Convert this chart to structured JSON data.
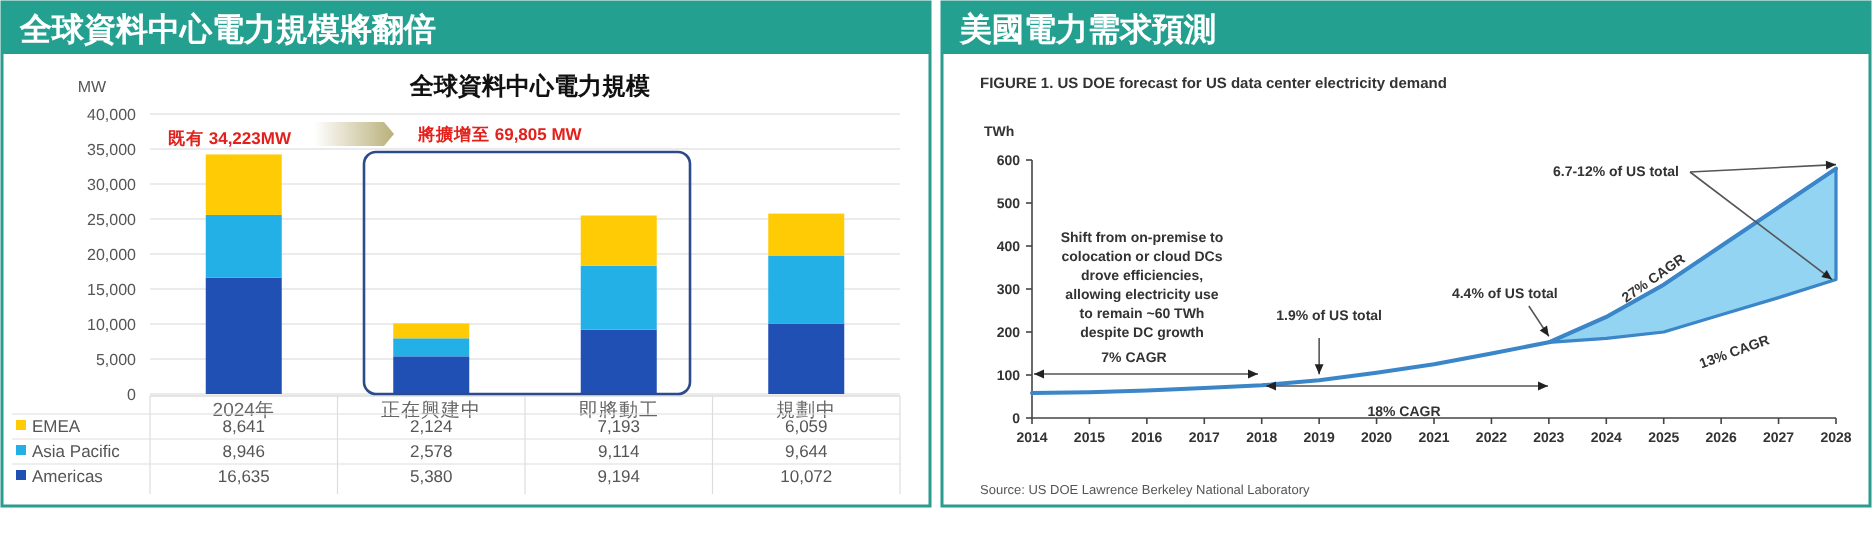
{
  "chart_data": [
    {
      "type": "bar",
      "title": "全球資料中心電力規模將翻倍",
      "subtitle": "全球資料中心電力規模",
      "ylabel": "MW",
      "stacked": true,
      "categories": [
        "2024年",
        "正在興建中",
        "即將動工",
        "規劃中"
      ],
      "series": [
        {
          "name": "Americas",
          "color": "#2150b5",
          "values": [
            16635,
            5380,
            9194,
            10072
          ],
          "value_labels": [
            "16,635",
            "5,380",
            "9,194",
            "10,072"
          ]
        },
        {
          "name": "Asia Pacific",
          "color": "#22b0e6",
          "values": [
            8946,
            2578,
            9114,
            9644
          ],
          "value_labels": [
            "8,946",
            "2,578",
            "9,114",
            "9,644"
          ]
        },
        {
          "name": "EMEA",
          "color": "#ffcb05",
          "values": [
            8641,
            2124,
            7193,
            6059
          ],
          "value_labels": [
            "8,641",
            "2,124",
            "7,193",
            "6,059"
          ]
        }
      ],
      "ylim": [
        0,
        40000
      ],
      "yticks": [
        0,
        {
          "value": 5000,
          "label": "5,000"
        },
        {
          "value": 10000,
          "label": "10,000"
        },
        {
          "value": 15000,
          "label": "15,000"
        },
        {
          "value": 20000,
          "label": "20,000"
        },
        {
          "value": 25000,
          "label": "25,000"
        },
        {
          "value": 30000,
          "label": "30,000"
        },
        {
          "value": 35000,
          "label": "35,000"
        },
        {
          "value": 40000,
          "label": "40,000"
        }
      ],
      "grid": "y",
      "legend": "bottom",
      "annotations": [
        "既有 34,223MW",
        "將擴增至 69,805 MW"
      ]
    },
    {
      "type": "line",
      "title": "美國電力需求預測",
      "subtitle": "FIGURE 1. US DOE forecast for US data center electricity demand",
      "ylabel": "TWh",
      "x": [
        2014,
        2015,
        2016,
        2017,
        2018,
        2019,
        2020,
        2021,
        2022,
        2023,
        2024,
        2025,
        2026,
        2027,
        2028
      ],
      "series": [
        {
          "color": "#3a86c8",
          "values": [
            58,
            60,
            64,
            70,
            76,
            88,
            105,
            125,
            150,
            176,
            235,
            310,
            400,
            490,
            580
          ],
          "lower": [
            null,
            null,
            null,
            null,
            null,
            null,
            null,
            null,
            null,
            176,
            185,
            200,
            240,
            280,
            322
          ],
          "upper": [
            null,
            null,
            null,
            null,
            null,
            null,
            null,
            null,
            null,
            176,
            235,
            310,
            400,
            490,
            580
          ]
        }
      ],
      "xlim": [
        2014,
        2028
      ],
      "xticks": [
        2014,
        2015,
        2016,
        2017,
        2018,
        2019,
        2020,
        2021,
        2022,
        2023,
        2024,
        2025,
        2026,
        2027,
        2028
      ],
      "ylim": [
        0,
        600
      ],
      "yticks": [
        0,
        100,
        200,
        300,
        400,
        500,
        600
      ],
      "grid": false,
      "marker": "none",
      "line_style": "solid",
      "annotations": [
        "Shift from on-premise to\ncolocation or cloud DCs\ndrove efficiencies,\nallowing electricity use\nto remain ~60 TWh\ndespite DC growth",
        "7% CAGR",
        "18% CAGR",
        {
          "text": "1.9% of US total",
          "x": 2019,
          "y": 88
        },
        {
          "text": "4.4% of US total",
          "x": 2023,
          "y": 176
        },
        "27% CAGR",
        "13% CAGR",
        {
          "text": "6.7-12% of US total",
          "x": 2028,
          "y": 580
        },
        "Source: US DOE Lawrence Berkeley National Laboratory"
      ]
    }
  ]
}
